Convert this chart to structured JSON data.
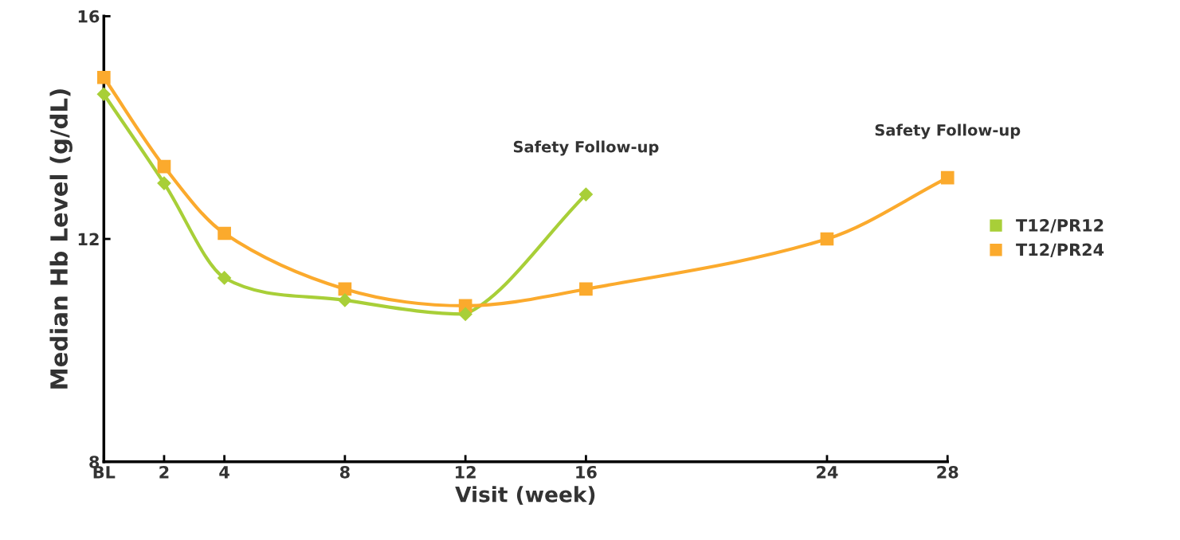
{
  "chart_data": {
    "type": "line",
    "xlabel": "Visit (week)",
    "ylabel": "Median Hb Level (g/dL)",
    "xlim": [
      0,
      28
    ],
    "xticks": [
      {
        "value": 0,
        "label": "BL"
      },
      2,
      4,
      8,
      12,
      16,
      24,
      28
    ],
    "ylim": [
      8,
      16
    ],
    "yticks": [
      8,
      12,
      16
    ],
    "grid": false,
    "legend": "right",
    "series": [
      {
        "name": "T12/PR12",
        "color": "#a8cf38",
        "marker": "diamond",
        "x": [
          0,
          2,
          4,
          8,
          12,
          16
        ],
        "values": [
          14.6,
          13.0,
          11.3,
          10.9,
          10.65,
          12.8
        ]
      },
      {
        "name": "T12/PR24",
        "color": "#fbaa2d",
        "marker": "square",
        "x": [
          0,
          2,
          4,
          8,
          12,
          16,
          24,
          28
        ],
        "values": [
          14.9,
          13.3,
          12.1,
          11.1,
          10.8,
          11.1,
          12.0,
          13.1
        ]
      }
    ],
    "annotations": [
      {
        "text": "Safety Follow-up",
        "x": 16,
        "y": 12.8
      },
      {
        "text": "Safety Follow-up",
        "x": 28,
        "y": 13.1
      }
    ]
  }
}
